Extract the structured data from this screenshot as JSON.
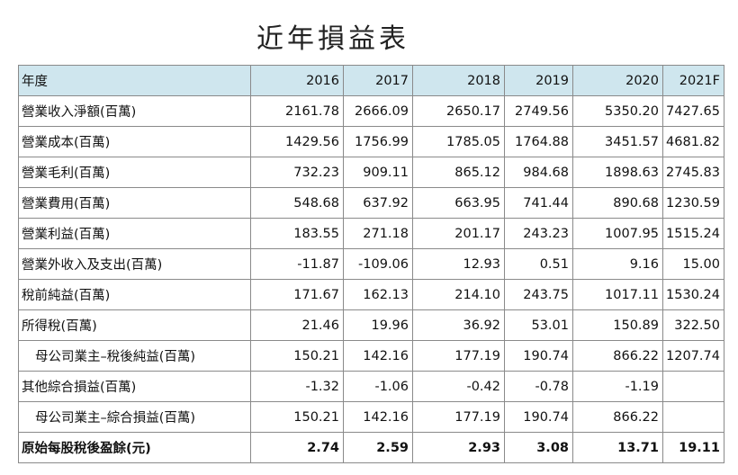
{
  "title": "近年損益表",
  "header": {
    "label": "年度",
    "years": [
      "2016",
      "2017",
      "2018",
      "2019",
      "2020",
      "2021F"
    ]
  },
  "rows": [
    {
      "label": "營業收入淨額(百萬)",
      "indent": false,
      "bold": false,
      "values": [
        "2161.78",
        "2666.09",
        "2650.17",
        "2749.56",
        "5350.20",
        "7427.65"
      ]
    },
    {
      "label": "營業成本(百萬)",
      "indent": false,
      "bold": false,
      "values": [
        "1429.56",
        "1756.99",
        "1785.05",
        "1764.88",
        "3451.57",
        "4681.82"
      ]
    },
    {
      "label": "營業毛利(百萬)",
      "indent": false,
      "bold": false,
      "values": [
        "732.23",
        "909.11",
        "865.12",
        "984.68",
        "1898.63",
        "2745.83"
      ]
    },
    {
      "label": "營業費用(百萬)",
      "indent": false,
      "bold": false,
      "values": [
        "548.68",
        "637.92",
        "663.95",
        "741.44",
        "890.68",
        "1230.59"
      ]
    },
    {
      "label": "營業利益(百萬)",
      "indent": false,
      "bold": false,
      "values": [
        "183.55",
        "271.18",
        "201.17",
        "243.23",
        "1007.95",
        "1515.24"
      ]
    },
    {
      "label": "營業外收入及支出(百萬)",
      "indent": false,
      "bold": false,
      "values": [
        "-11.87",
        "-109.06",
        "12.93",
        "0.51",
        "9.16",
        "15.00"
      ]
    },
    {
      "label": "稅前純益(百萬)",
      "indent": false,
      "bold": false,
      "values": [
        "171.67",
        "162.13",
        "214.10",
        "243.75",
        "1017.11",
        "1530.24"
      ]
    },
    {
      "label": "所得稅(百萬)",
      "indent": false,
      "bold": false,
      "values": [
        "21.46",
        "19.96",
        "36.92",
        "53.01",
        "150.89",
        "322.50"
      ]
    },
    {
      "label": "母公司業主–稅後純益(百萬)",
      "indent": true,
      "bold": false,
      "values": [
        "150.21",
        "142.16",
        "177.19",
        "190.74",
        "866.22",
        "1207.74"
      ]
    },
    {
      "label": "其他綜合損益(百萬)",
      "indent": false,
      "bold": false,
      "values": [
        "-1.32",
        "-1.06",
        "-0.42",
        "-0.78",
        "-1.19",
        ""
      ]
    },
    {
      "label": "母公司業主–綜合損益(百萬)",
      "indent": true,
      "bold": false,
      "values": [
        "150.21",
        "142.16",
        "177.19",
        "190.74",
        "866.22",
        ""
      ]
    },
    {
      "label": "原始每股稅後盈餘(元)",
      "indent": false,
      "bold": true,
      "values": [
        "2.74",
        "2.59",
        "2.93",
        "3.08",
        "13.71",
        "19.11"
      ]
    }
  ]
}
